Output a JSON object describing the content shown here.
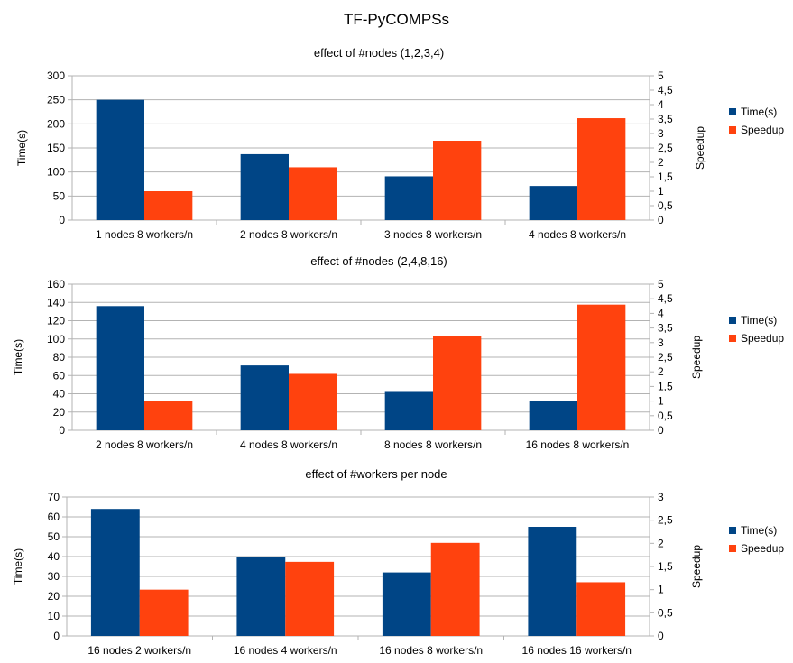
{
  "page_title": "TF-PyCOMPSs",
  "colors": {
    "time": "#004586",
    "speedup": "#ff420e",
    "grid": "#b3b3b3",
    "axis": "#b3b3b3"
  },
  "chart_data": [
    {
      "type": "bar",
      "title": "effect of #nodes (1,2,3,4)",
      "ylabel": "Time(s)",
      "y2label": "Speedup",
      "categories": [
        "1 nodes 8 workers/n",
        "2 nodes 8 workers/n",
        "3 nodes 8 workers/n",
        "4 nodes 8 workers/n"
      ],
      "series": [
        {
          "name": "Time(s)",
          "axis": "left",
          "values": [
            250,
            137,
            91,
            71
          ]
        },
        {
          "name": "Speedup",
          "axis": "right",
          "values": [
            1,
            1.83,
            2.75,
            3.53
          ]
        }
      ],
      "ylim": [
        0,
        300
      ],
      "yticks": [
        "0",
        "50",
        "100",
        "150",
        "200",
        "250",
        "300"
      ],
      "y2lim": [
        0,
        5
      ],
      "y2ticks": [
        "0",
        "0,5",
        "1",
        "1,5",
        "2",
        "2,5",
        "3",
        "3,5",
        "4",
        "4,5",
        "5"
      ],
      "legend_position": "right",
      "grid": true
    },
    {
      "type": "bar",
      "title": "effect of #nodes (2,4,8,16)",
      "ylabel": "Time(s)",
      "y2label": "Speedup",
      "categories": [
        "2 nodes 8 workers/n",
        "4 nodes 8 workers/n",
        "8 nodes 8 workers/n",
        "16 nodes 8 workers/n"
      ],
      "series": [
        {
          "name": "Time(s)",
          "axis": "left",
          "values": [
            136,
            71,
            42,
            32
          ]
        },
        {
          "name": "Speedup",
          "axis": "right",
          "values": [
            1,
            1.93,
            3.21,
            4.3
          ]
        }
      ],
      "ylim": [
        0,
        160
      ],
      "yticks": [
        "0",
        "20",
        "40",
        "60",
        "80",
        "100",
        "120",
        "140",
        "160"
      ],
      "y2lim": [
        0,
        5
      ],
      "y2ticks": [
        "0",
        "0,5",
        "1",
        "1,5",
        "2",
        "2,5",
        "3",
        "3,5",
        "4",
        "4,5",
        "5"
      ],
      "legend_position": "right",
      "grid": true
    },
    {
      "type": "bar",
      "title": "effect of #workers per node",
      "ylabel": "Time(s)",
      "y2label": "Speedup",
      "categories": [
        "16 nodes  2 workers/n",
        "16 nodes  4 workers/n",
        "16 nodes  8 workers/n",
        "16 nodes  16 workers/n"
      ],
      "series": [
        {
          "name": "Time(s)",
          "axis": "left",
          "values": [
            64,
            40,
            32,
            55
          ]
        },
        {
          "name": "Speedup",
          "axis": "right",
          "values": [
            1,
            1.6,
            2.01,
            1.16
          ]
        }
      ],
      "ylim": [
        0,
        70
      ],
      "yticks": [
        "0",
        "10",
        "20",
        "30",
        "40",
        "50",
        "60",
        "70"
      ],
      "y2lim": [
        0,
        3
      ],
      "y2ticks": [
        "0",
        "0,5",
        "1",
        "1,5",
        "2",
        "2,5",
        "3"
      ],
      "legend_position": "right",
      "grid": true
    }
  ]
}
